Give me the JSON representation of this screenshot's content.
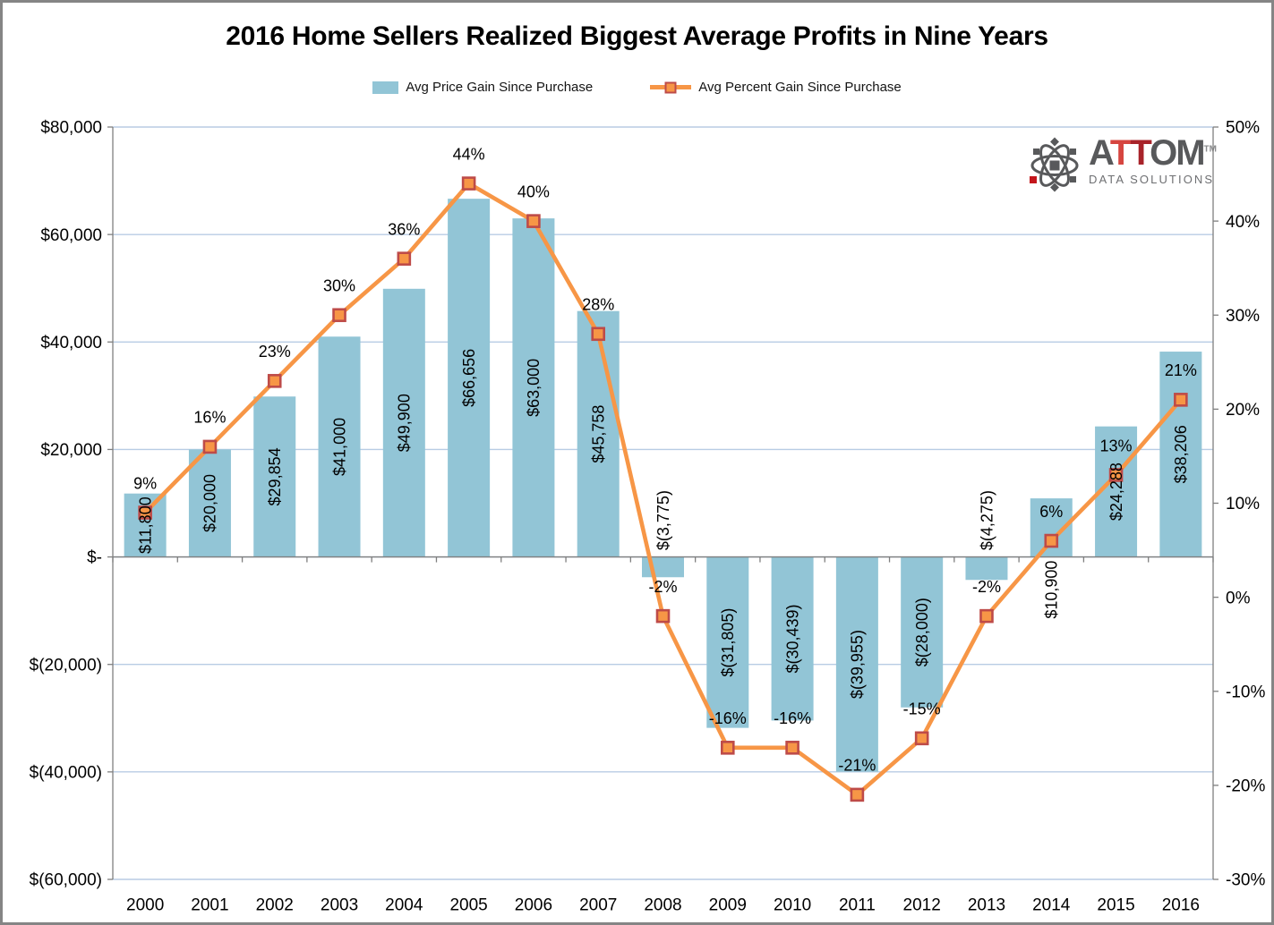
{
  "title": "2016 Home Sellers Realized Biggest Average Profits in Nine Years",
  "logo": {
    "a": "A",
    "t1": "T",
    "t2": "T",
    "om": "OM",
    "tm": "TM",
    "subtitle": "DATA SOLUTIONS"
  },
  "colors": {
    "bar": "#92C5D6",
    "line": "#F79646",
    "marker_fill": "#F79646",
    "marker_border": "#BE4B48",
    "gridline": "#B8CCE4",
    "axis": "#7F7F7F",
    "label": "#000000",
    "logo_gray": "#58595B",
    "logo_red1": "#D6453F",
    "logo_red2": "#A8232A"
  },
  "chart_data": {
    "type": "bar+line combo",
    "title": "2016 Home Sellers Realized Biggest Average Profits in Nine Years",
    "categories": [
      "2000",
      "2001",
      "2002",
      "2003",
      "2004",
      "2005",
      "2006",
      "2007",
      "2008",
      "2009",
      "2010",
      "2011",
      "2012",
      "2013",
      "2014",
      "2015",
      "2016"
    ],
    "series": [
      {
        "name": "Avg Price Gain Since Purchase",
        "type": "bar",
        "axis": "left",
        "values": [
          11800,
          20000,
          29854,
          41000,
          49900,
          66656,
          63000,
          45758,
          -3775,
          -31805,
          -30439,
          -39955,
          -28000,
          -4275,
          10900,
          24288,
          38206
        ],
        "labels": [
          "$11,800",
          "$20,000",
          "$29,854",
          "$41,000",
          "$49,900",
          "$66,656",
          "$63,000",
          "$45,758",
          "$(3,775)",
          "$(31,805)",
          "$(30,439)",
          "$(39,955)",
          "$(28,000)",
          "$(4,275)",
          "$10,900",
          "$24,288",
          "$38,206"
        ]
      },
      {
        "name": "Avg Percent Gain Since Purchase",
        "type": "line",
        "axis": "right",
        "values": [
          9,
          16,
          23,
          30,
          36,
          44,
          40,
          28,
          -2,
          -16,
          -16,
          -21,
          -15,
          -2,
          6,
          13,
          21
        ],
        "labels": [
          "9%",
          "16%",
          "23%",
          "30%",
          "36%",
          "44%",
          "40%",
          "28%",
          "-2%",
          "-16%",
          "-16%",
          "-21%",
          "-15%",
          "-2%",
          "6%",
          "13%",
          "21%"
        ]
      }
    ],
    "left_axis": {
      "min": -60000,
      "max": 80000,
      "tick_values": [
        80000,
        60000,
        40000,
        20000,
        0,
        -20000,
        -40000,
        -60000
      ],
      "tick_labels": [
        "$80,000",
        "$60,000",
        "$40,000",
        "$20,000",
        "$-",
        "$(20,000)",
        "$(40,000)",
        "$(60,000)"
      ]
    },
    "right_axis": {
      "min": -30,
      "max": 50,
      "tick_values": [
        50,
        40,
        30,
        20,
        10,
        0,
        -10,
        -20,
        -30
      ],
      "tick_labels": [
        "50%",
        "40%",
        "30%",
        "20%",
        "10%",
        "0%",
        "-10%",
        "-20%",
        "-30%"
      ]
    },
    "grid": true,
    "legend_position": "top"
  }
}
